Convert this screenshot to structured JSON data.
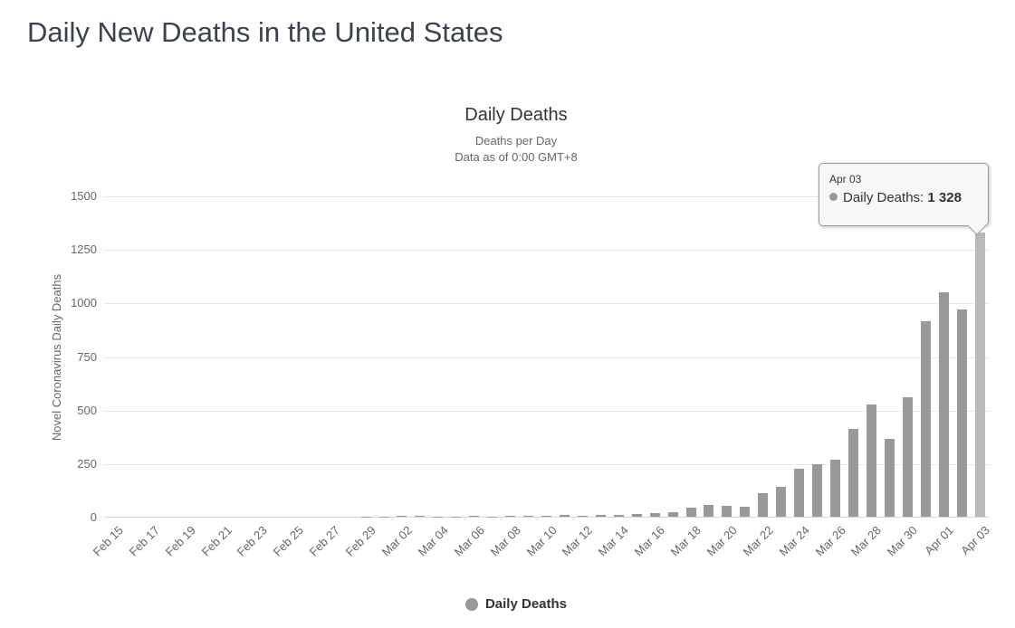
{
  "page": {
    "title": "Daily New Deaths in the United States"
  },
  "chart_data": {
    "type": "bar",
    "title": "Daily Deaths",
    "subtitle_lines": [
      "Deaths per Day",
      "Data as of 0:00 GMT+8"
    ],
    "ylabel": "Novel Coronavirus Daily Deaths",
    "xlabel": "",
    "ylim": [
      0,
      1500
    ],
    "yticks": [
      0,
      250,
      500,
      750,
      1000,
      1250,
      1500
    ],
    "grid": "horizontal",
    "x_label_every": 2,
    "x_label_rotation": -45,
    "legend_position": "bottom-center",
    "series_name": "Daily Deaths",
    "categories": [
      "Feb 15",
      "Feb 16",
      "Feb 17",
      "Feb 18",
      "Feb 19",
      "Feb 20",
      "Feb 21",
      "Feb 22",
      "Feb 23",
      "Feb 24",
      "Feb 25",
      "Feb 26",
      "Feb 27",
      "Feb 28",
      "Feb 29",
      "Mar 01",
      "Mar 02",
      "Mar 03",
      "Mar 04",
      "Mar 05",
      "Mar 06",
      "Mar 07",
      "Mar 08",
      "Mar 09",
      "Mar 10",
      "Mar 11",
      "Mar 12",
      "Mar 13",
      "Mar 14",
      "Mar 15",
      "Mar 16",
      "Mar 17",
      "Mar 18",
      "Mar 19",
      "Mar 20",
      "Mar 21",
      "Mar 22",
      "Mar 23",
      "Mar 24",
      "Mar 25",
      "Mar 26",
      "Mar 27",
      "Mar 28",
      "Mar 29",
      "Mar 30",
      "Mar 31",
      "Apr 01",
      "Apr 02",
      "Apr 03"
    ],
    "values": [
      0,
      0,
      0,
      0,
      0,
      0,
      0,
      0,
      0,
      0,
      0,
      0,
      0,
      0,
      1,
      1,
      4,
      3,
      2,
      1,
      3,
      2,
      3,
      4,
      4,
      8,
      3,
      8,
      9,
      11,
      18,
      23,
      41,
      57,
      49,
      46,
      111,
      140,
      225,
      247,
      268,
      411,
      525,
      363,
      558,
      912,
      1049,
      968,
      1328
    ],
    "tooltip": {
      "category": "Apr 03",
      "series_label": "Daily Deaths:",
      "value": 1328,
      "value_formatted": "1 328"
    },
    "colors": {
      "bar": "#999999",
      "bar_hover": "#b9b9b9",
      "gridline": "#e6e6e6",
      "axis_line": "#ccd6eb",
      "title": "#333333",
      "subtitle": "#666666",
      "tick_label": "#666666",
      "page_title": "#3b4151",
      "legend_text": "#333333",
      "tooltip_border": "#999999"
    }
  }
}
